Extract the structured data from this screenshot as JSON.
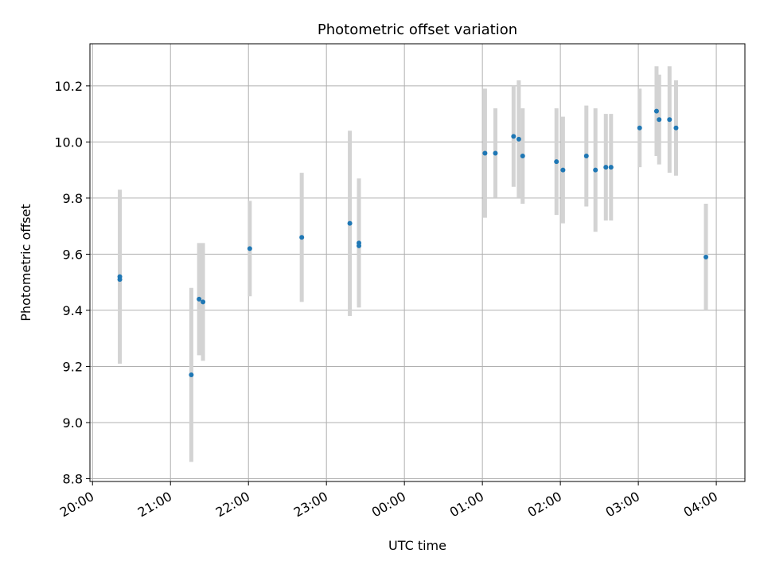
{
  "chart_data": {
    "type": "scatter",
    "title": "Photometric offset variation",
    "xlabel": "UTC time",
    "ylabel": "Photometric offset",
    "x_ticks": [
      "20:00",
      "21:00",
      "22:00",
      "23:00",
      "00:00",
      "01:00",
      "02:00",
      "03:00",
      "04:00"
    ],
    "xlim": [
      "19:58",
      "04:22"
    ],
    "y_ticks": [
      "8.8",
      "9.0",
      "9.2",
      "9.4",
      "9.6",
      "9.8",
      "10.0",
      "10.2"
    ],
    "ylim": [
      8.79,
      10.35
    ],
    "grid": true,
    "marker_color": "#1f77b4",
    "errorbar_color": "#d3d3d3",
    "points": [
      {
        "x": "20:21",
        "y": 9.52,
        "err": 0.31
      },
      {
        "x": "20:21",
        "y": 9.51,
        "err": 0.3
      },
      {
        "x": "21:16",
        "y": 9.17,
        "err": 0.31
      },
      {
        "x": "21:22",
        "y": 9.44,
        "err": 0.2
      },
      {
        "x": "21:25",
        "y": 9.43,
        "err": 0.21
      },
      {
        "x": "22:01",
        "y": 9.62,
        "err": 0.17
      },
      {
        "x": "22:41",
        "y": 9.66,
        "err": 0.23
      },
      {
        "x": "23:18",
        "y": 9.71,
        "err": 0.33
      },
      {
        "x": "23:25",
        "y": 9.64,
        "err": 0.23
      },
      {
        "x": "23:25",
        "y": 9.63,
        "err": 0.21
      },
      {
        "x": "01:02",
        "y": 9.96,
        "err": 0.23
      },
      {
        "x": "01:10",
        "y": 9.96,
        "err": 0.16
      },
      {
        "x": "01:24",
        "y": 10.02,
        "err": 0.18
      },
      {
        "x": "01:28",
        "y": 10.01,
        "err": 0.21
      },
      {
        "x": "01:31",
        "y": 9.95,
        "err": 0.17
      },
      {
        "x": "01:57",
        "y": 9.93,
        "err": 0.19
      },
      {
        "x": "02:02",
        "y": 9.9,
        "err": 0.19
      },
      {
        "x": "02:20",
        "y": 9.95,
        "err": 0.18
      },
      {
        "x": "02:27",
        "y": 9.9,
        "err": 0.22
      },
      {
        "x": "02:35",
        "y": 9.91,
        "err": 0.19
      },
      {
        "x": "02:39",
        "y": 9.91,
        "err": 0.19
      },
      {
        "x": "03:01",
        "y": 10.05,
        "err": 0.14
      },
      {
        "x": "03:14",
        "y": 10.11,
        "err": 0.16
      },
      {
        "x": "03:16",
        "y": 10.08,
        "err": 0.16
      },
      {
        "x": "03:24",
        "y": 10.08,
        "err": 0.19
      },
      {
        "x": "03:29",
        "y": 10.05,
        "err": 0.17
      },
      {
        "x": "03:52",
        "y": 9.59,
        "err": 0.19
      }
    ]
  }
}
